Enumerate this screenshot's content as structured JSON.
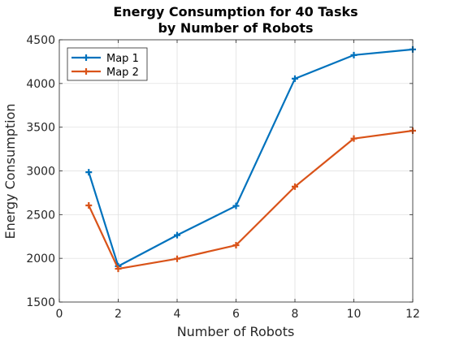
{
  "chart_data": {
    "type": "line",
    "title": [
      "Energy Consumption for 40 Tasks",
      "by Number of Robots"
    ],
    "xlabel": "Number of Robots",
    "ylabel": "Energy Consumption",
    "xlim": [
      0,
      12
    ],
    "ylim": [
      1500,
      4500
    ],
    "xticks": [
      0,
      2,
      4,
      6,
      8,
      10,
      12
    ],
    "yticks": [
      1500,
      2000,
      2500,
      3000,
      3500,
      4000,
      4500
    ],
    "grid": true,
    "legend_position": "top-left",
    "x": [
      1,
      2,
      4,
      6,
      8,
      10,
      12
    ],
    "series": [
      {
        "name": "Map 1",
        "color": "#0072BD",
        "marker": "plus",
        "values": [
          2985,
          1910,
          2265,
          2600,
          4055,
          4325,
          4390
        ]
      },
      {
        "name": "Map 2",
        "color": "#D95319",
        "marker": "plus",
        "values": [
          2605,
          1880,
          1995,
          2150,
          2820,
          3370,
          3460
        ]
      }
    ]
  }
}
